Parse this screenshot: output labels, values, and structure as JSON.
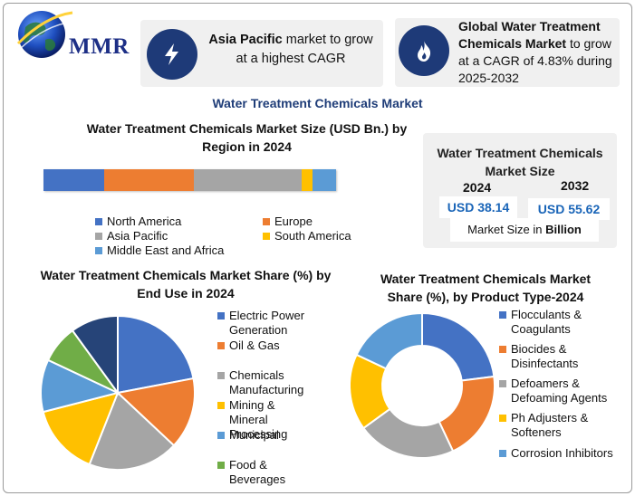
{
  "header": {
    "logo_text": "MMR",
    "callout_left": {
      "bold": "Asia Pacific",
      "text": "market to grow at a highest CAGR",
      "icon": "lightning-icon"
    },
    "callout_right": {
      "bold": "Global Water Treatment Chemicals Market",
      "text": "to grow at a CAGR of 4.83% during 2025-2032",
      "icon": "flame-icon"
    }
  },
  "main_title": "Water Treatment Chemicals Market",
  "colors": {
    "blue": "#4472c4",
    "orange": "#ed7d31",
    "gray": "#a5a5a5",
    "yellow": "#ffc000",
    "lightblue": "#5b9bd5",
    "green": "#70ad47",
    "navy": "#264478",
    "dark_accent": "#1e3a78"
  },
  "market_size": {
    "title": "Water Treatment Chemicals Market Size",
    "year_start": "2024",
    "year_end": "2032",
    "value_start": "USD 38.14",
    "value_end": "USD 55.62",
    "note_prefix": "Market Size in",
    "note_unit": "Billion"
  },
  "chart_data": [
    {
      "type": "bar",
      "title": "Water Treatment Chemicals Market Size (USD Bn.) by Region in 2024",
      "stacked": true,
      "orientation": "horizontal",
      "series": [
        {
          "name": "North America",
          "values": [
            21
          ],
          "color": "#4472c4"
        },
        {
          "name": "Europe",
          "values": [
            31
          ],
          "color": "#ed7d31"
        },
        {
          "name": "Asia Pacific",
          "values": [
            37
          ],
          "color": "#a5a5a5"
        },
        {
          "name": "South America",
          "values": [
            4
          ],
          "color": "#ffc000"
        },
        {
          "name": "Middle East and Africa",
          "values": [
            8
          ],
          "color": "#5b9bd5"
        }
      ],
      "legend_position": "bottom"
    },
    {
      "type": "pie",
      "title": "Water Treatment Chemicals Market Share (%) by End Use in 2024",
      "slices": [
        {
          "name": "Electric Power Generation",
          "value": 22,
          "color": "#4472c4"
        },
        {
          "name": "Oil & Gas",
          "value": 15,
          "color": "#ed7d31"
        },
        {
          "name": "Chemicals Manufacturing",
          "value": 19,
          "color": "#a5a5a5"
        },
        {
          "name": "Mining & Mineral Processing",
          "value": 15,
          "color": "#ffc000"
        },
        {
          "name": "Municipal",
          "value": 11,
          "color": "#5b9bd5"
        },
        {
          "name": "Food & Beverages",
          "value": 8,
          "color": "#70ad47"
        },
        {
          "name": "",
          "value": 10,
          "color": "#264478"
        }
      ],
      "legend_position": "right"
    },
    {
      "type": "pie",
      "donut": true,
      "title": "Water Treatment Chemicals Market Share (%), by Product Type-2024",
      "slices": [
        {
          "name": "Flocculants & Coagulants",
          "value": 23,
          "color": "#4472c4"
        },
        {
          "name": "Biocides & Disinfectants",
          "value": 20,
          "color": "#ed7d31"
        },
        {
          "name": "Defoamers & Defoaming Agents",
          "value": 22,
          "color": "#a5a5a5"
        },
        {
          "name": "Ph Adjusters & Softeners",
          "value": 17,
          "color": "#ffc000"
        },
        {
          "name": "Corrosion Inhibitors",
          "value": 18,
          "color": "#5b9bd5"
        }
      ],
      "legend_position": "right"
    }
  ]
}
